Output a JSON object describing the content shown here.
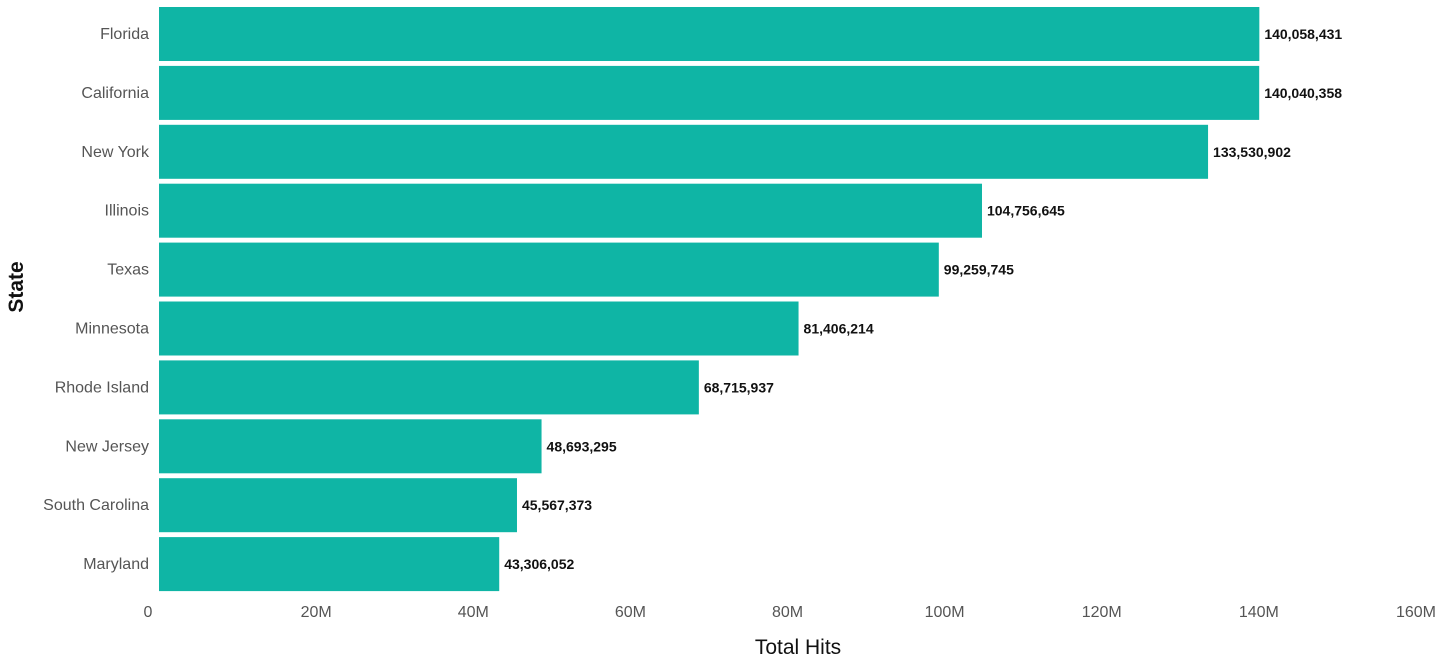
{
  "chart_data": {
    "type": "bar",
    "orientation": "horizontal",
    "categories": [
      "Florida",
      "California",
      "New York",
      "Illinois",
      "Texas",
      "Minnesota",
      "Rhode Island",
      "New Jersey",
      "South Carolina",
      "Maryland"
    ],
    "values": [
      140058431,
      140040358,
      133530902,
      104756645,
      99259745,
      81406214,
      68715937,
      48693295,
      45567373,
      43306052
    ],
    "value_labels": [
      "140,058,431",
      "140,040,358",
      "133,530,902",
      "104,756,645",
      "99,259,745",
      "81,406,214",
      "68,715,937",
      "48,693,295",
      "45,567,373",
      "43,306,052"
    ],
    "xlabel": "Total Hits",
    "ylabel": "State",
    "xlim": [
      0,
      160000000
    ],
    "x_ticks": [
      0,
      20000000,
      40000000,
      60000000,
      80000000,
      100000000,
      120000000,
      140000000,
      160000000
    ],
    "x_tick_labels": [
      "0",
      "20M",
      "40M",
      "60M",
      "80M",
      "100M",
      "120M",
      "140M",
      "160M"
    ],
    "bar_color": "#0FB5A5",
    "grid": false,
    "legend": "none"
  }
}
